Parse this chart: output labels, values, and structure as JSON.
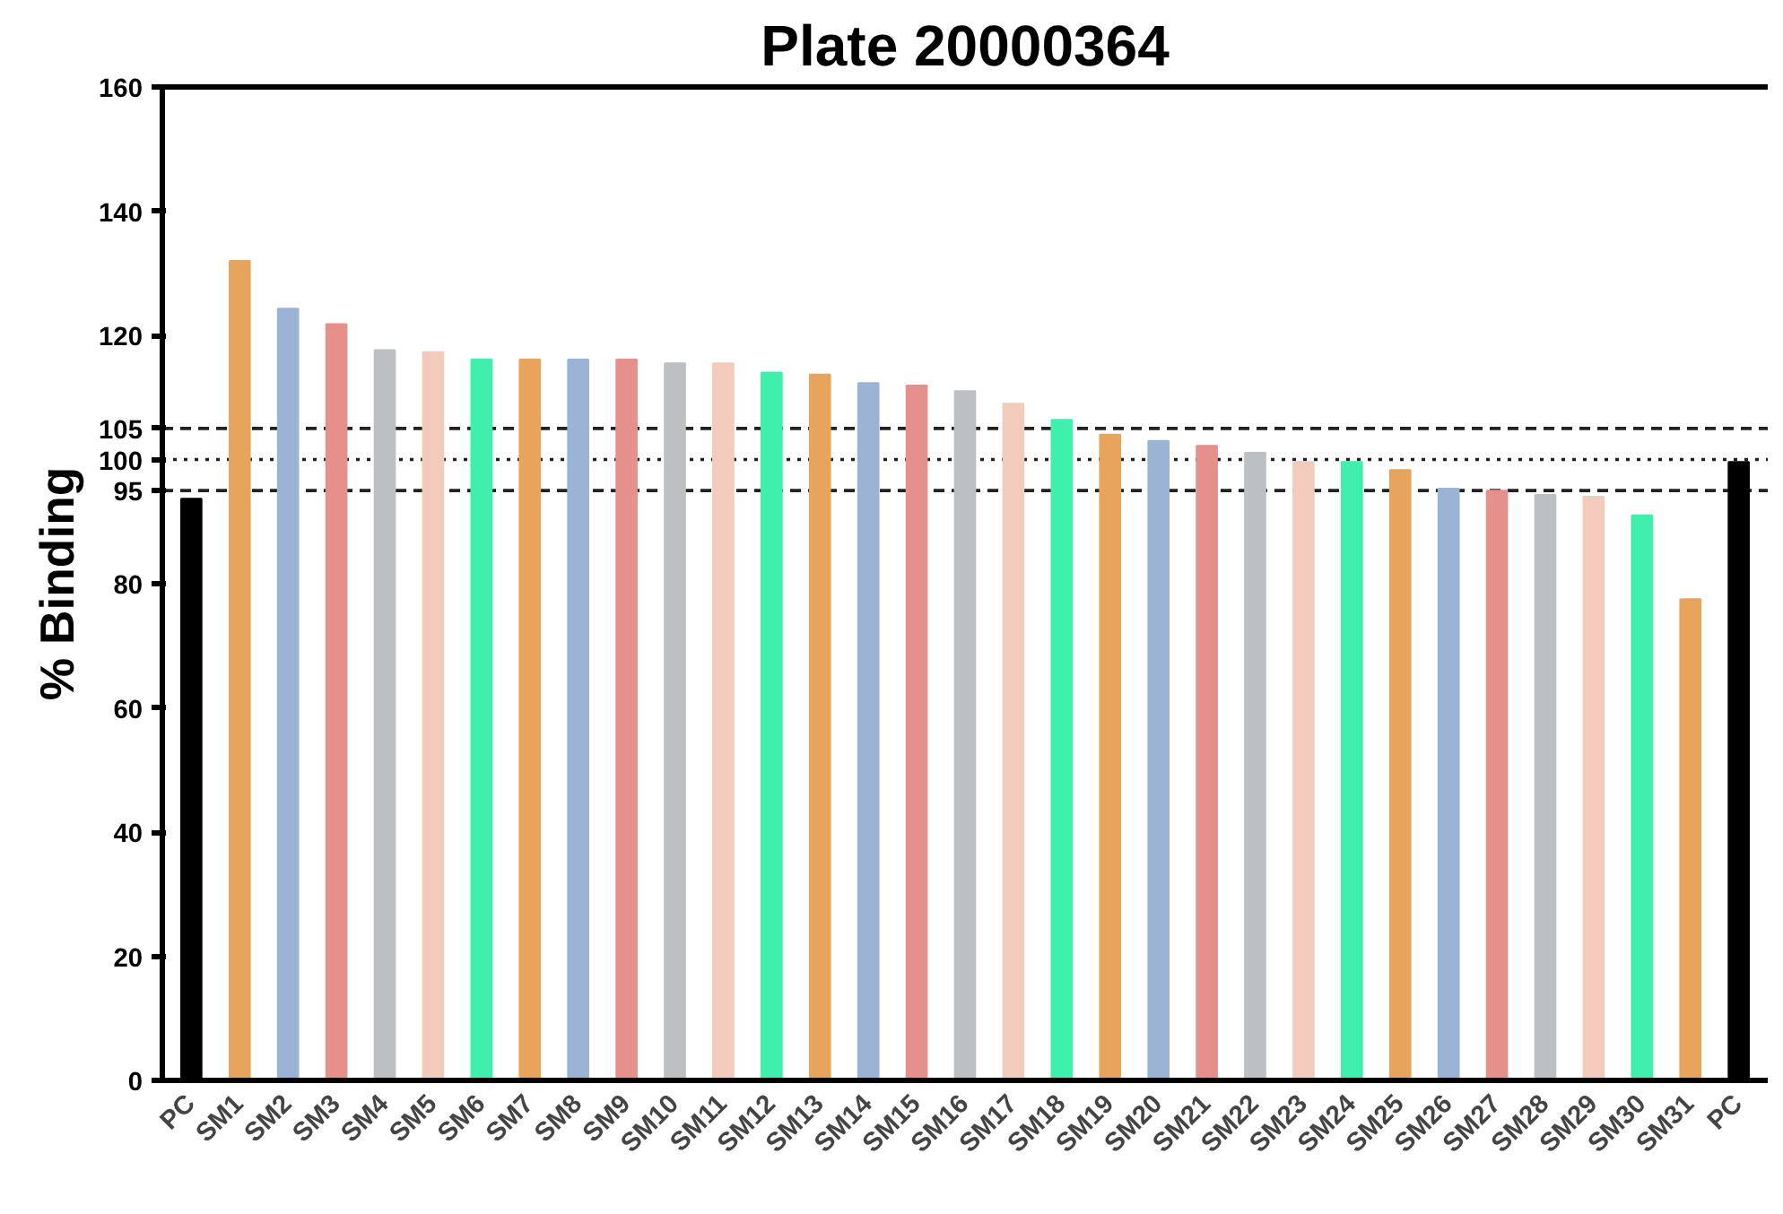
{
  "chart_data": {
    "type": "bar",
    "title": "Plate 20000364",
    "ylabel": "% Binding",
    "categories": [
      "PC",
      "SM1",
      "SM2",
      "SM3",
      "SM4",
      "SM5",
      "SM6",
      "SM7",
      "SM8",
      "SM9",
      "SM10",
      "SM11",
      "SM12",
      "SM13",
      "SM14",
      "SM15",
      "SM16",
      "SM17",
      "SM18",
      "SM19",
      "SM20",
      "SM21",
      "SM22",
      "SM23",
      "SM24",
      "SM25",
      "SM26",
      "SM27",
      "SM28",
      "SM29",
      "SM30",
      "SM31",
      "PC"
    ],
    "values": [
      93.7,
      132,
      124.3,
      121.8,
      117.6,
      117.3,
      116.1,
      116.1,
      116.1,
      116.1,
      115.5,
      115.5,
      114,
      113.7,
      112.3,
      111.9,
      111,
      109,
      106.4,
      104,
      103,
      102.2,
      101.1,
      99.6,
      99.6,
      98.3,
      95.3,
      95,
      94.3,
      94,
      91,
      77.5,
      99.6
    ],
    "colors": [
      "#000000",
      "#e8a45c",
      "#9bb4d6",
      "#e5908a",
      "#bcc0c3",
      "#f2cbbd",
      "#3ef0ac",
      "#e8a45c",
      "#9bb4d6",
      "#e5908a",
      "#bcc0c3",
      "#f2cbbd",
      "#3ef0ac",
      "#e8a45c",
      "#9bb4d6",
      "#e5908a",
      "#bcc0c3",
      "#f2cbbd",
      "#3ef0ac",
      "#e8a45c",
      "#9bb4d6",
      "#e5908a",
      "#bcc0c3",
      "#f2cbbd",
      "#3ef0ac",
      "#e8a45c",
      "#9bb4d6",
      "#e5908a",
      "#bcc0c3",
      "#f2cbbd",
      "#3ef0ac",
      "#e8a45c",
      "#000000"
    ],
    "ylim": [
      0,
      160
    ],
    "yticks": [
      0,
      20,
      40,
      60,
      80,
      95,
      100,
      105,
      120,
      140,
      160
    ],
    "ref_lines": [
      {
        "axis": "y",
        "value": 105,
        "line_style": "dashed",
        "color": "#222222"
      },
      {
        "axis": "y",
        "value": 100,
        "line_style": "dotted",
        "color": "#222222"
      },
      {
        "axis": "y",
        "value": 95,
        "line_style": "dashed",
        "color": "#222222"
      }
    ],
    "grid": false
  }
}
